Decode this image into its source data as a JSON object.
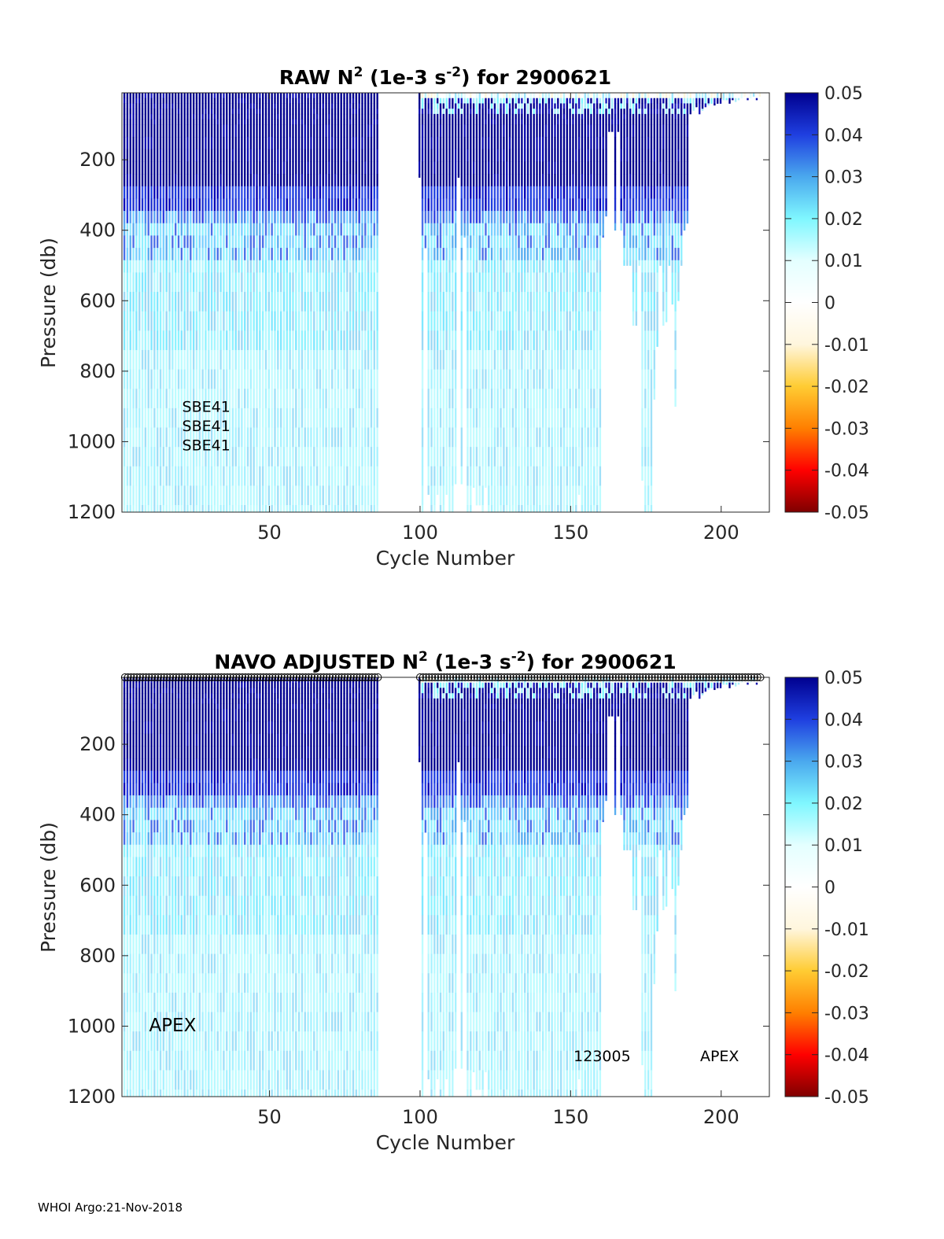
{
  "footer": "WHOI Argo:21-Nov-2018",
  "colorbar": {
    "ticks": [
      "0.05",
      "0.04",
      "0.03",
      "0.02",
      "0.01",
      "0",
      "-0.01",
      "-0.02",
      "-0.03",
      "-0.04",
      "-0.05"
    ],
    "range": [
      -0.05,
      0.05
    ],
    "stops": [
      "#7f0000",
      "#ff0000",
      "#ff7f00",
      "#ffcc33",
      "#fff6dd",
      "#ffffff",
      "#e4ffff",
      "#7ff7ff",
      "#4aa8ee",
      "#1f3fe0",
      "#00008f"
    ]
  },
  "chart_data": [
    {
      "type": "heatmap",
      "title_main": "RAW N",
      "title_sup1": "2",
      "title_mid": " (1e-3 s",
      "title_sup2": "-2",
      "title_end": ") for 2900621",
      "xlabel": "Cycle Number",
      "ylabel": "Pressure (db)",
      "xlim": [
        1,
        216
      ],
      "ylim": [
        10,
        1200
      ],
      "xticks": [
        50,
        100,
        150,
        200
      ],
      "yticks": [
        200,
        400,
        600,
        800,
        1000,
        1200
      ],
      "annotations": [
        {
          "text": "SBE41",
          "x": 21,
          "y": 915
        },
        {
          "text": "SBE41",
          "x": 21,
          "y": 970
        },
        {
          "text": "SBE41",
          "x": 21,
          "y": 1025
        }
      ],
      "show_markers": false
    },
    {
      "type": "heatmap",
      "title_main": "NAVO  ADJUSTED N",
      "title_sup1": "2",
      "title_mid": " (1e-3 s",
      "title_sup2": "-2",
      "title_end": ") for 2900621",
      "xlabel": "Cycle Number",
      "ylabel": "Pressure (db)",
      "xlim": [
        1,
        216
      ],
      "ylim": [
        10,
        1200
      ],
      "xticks": [
        50,
        100,
        150,
        200
      ],
      "yticks": [
        200,
        400,
        600,
        800,
        1000,
        1200
      ],
      "annotations": [
        {
          "text": "APEX",
          "x": 10,
          "y": 1015,
          "big": true
        },
        {
          "text": "123005",
          "x": 151,
          "y": 1100
        },
        {
          "text": "APEX",
          "x": 193,
          "y": 1100
        }
      ],
      "show_markers": true
    }
  ],
  "profiles": {
    "cycles_group1": [
      2,
      86
    ],
    "cycles_group2": [
      102,
      213
    ],
    "mid_cycle": 100,
    "max_depth_group1": 1200,
    "max_depth_by_cycle": [
      [
        100,
        250
      ],
      [
        101,
        1200
      ],
      [
        102,
        450
      ],
      [
        103,
        1150
      ],
      [
        104,
        1200
      ],
      [
        105,
        1200
      ],
      [
        106,
        1150
      ],
      [
        107,
        1200
      ],
      [
        108,
        1200
      ],
      [
        109,
        1150
      ],
      [
        110,
        1200
      ],
      [
        111,
        1200
      ],
      [
        112,
        1120
      ],
      [
        113,
        250
      ],
      [
        114,
        1120
      ],
      [
        115,
        420
      ],
      [
        116,
        1200
      ],
      [
        117,
        1200
      ],
      [
        118,
        1130
      ],
      [
        119,
        1180
      ],
      [
        120,
        1180
      ],
      [
        121,
        1200
      ],
      [
        122,
        1130
      ],
      [
        123,
        1200
      ],
      [
        124,
        1200
      ],
      [
        125,
        1200
      ],
      [
        126,
        1200
      ],
      [
        127,
        1200
      ],
      [
        128,
        1200
      ],
      [
        129,
        1200
      ],
      [
        130,
        1200
      ],
      [
        131,
        1200
      ],
      [
        132,
        1200
      ],
      [
        133,
        1200
      ],
      [
        134,
        1200
      ],
      [
        135,
        1200
      ],
      [
        136,
        1200
      ],
      [
        137,
        1200
      ],
      [
        138,
        1200
      ],
      [
        139,
        1200
      ],
      [
        140,
        1200
      ],
      [
        141,
        1200
      ],
      [
        142,
        1200
      ],
      [
        143,
        1200
      ],
      [
        144,
        1200
      ],
      [
        145,
        1200
      ],
      [
        146,
        1200
      ],
      [
        147,
        1200
      ],
      [
        148,
        1200
      ],
      [
        149,
        1200
      ],
      [
        150,
        1200
      ],
      [
        151,
        1200
      ],
      [
        152,
        1200
      ],
      [
        153,
        1150
      ],
      [
        154,
        1200
      ],
      [
        155,
        1200
      ],
      [
        156,
        1200
      ],
      [
        157,
        1200
      ],
      [
        158,
        1200
      ],
      [
        159,
        1200
      ],
      [
        160,
        1200
      ],
      [
        161,
        420
      ],
      [
        162,
        360
      ],
      [
        163,
        120
      ],
      [
        164,
        120
      ],
      [
        165,
        400
      ],
      [
        166,
        120
      ],
      [
        167,
        400
      ],
      [
        168,
        500
      ],
      [
        169,
        500
      ],
      [
        170,
        500
      ],
      [
        171,
        670
      ],
      [
        172,
        670
      ],
      [
        173,
        500
      ],
      [
        174,
        1110
      ],
      [
        175,
        1200
      ],
      [
        176,
        1200
      ],
      [
        177,
        1200
      ],
      [
        178,
        880
      ],
      [
        179,
        730
      ],
      [
        180,
        500
      ],
      [
        181,
        670
      ],
      [
        182,
        660
      ],
      [
        183,
        500
      ],
      [
        184,
        610
      ],
      [
        185,
        900
      ],
      [
        186,
        600
      ],
      [
        187,
        500
      ],
      [
        188,
        400
      ],
      [
        189,
        380
      ],
      [
        190,
        70
      ],
      [
        191,
        60
      ],
      [
        192,
        50
      ],
      [
        193,
        70
      ],
      [
        194,
        60
      ],
      [
        195,
        50
      ],
      [
        196,
        45
      ],
      [
        197,
        40
      ],
      [
        198,
        45
      ],
      [
        199,
        40
      ],
      [
        200,
        40
      ],
      [
        201,
        30
      ],
      [
        202,
        30
      ],
      [
        203,
        40
      ],
      [
        204,
        30
      ],
      [
        205,
        35
      ],
      [
        206,
        30
      ],
      [
        207,
        25
      ],
      [
        208,
        20
      ],
      [
        209,
        30
      ],
      [
        210,
        25
      ],
      [
        211,
        20
      ],
      [
        212,
        30
      ],
      [
        213,
        20
      ]
    ]
  }
}
